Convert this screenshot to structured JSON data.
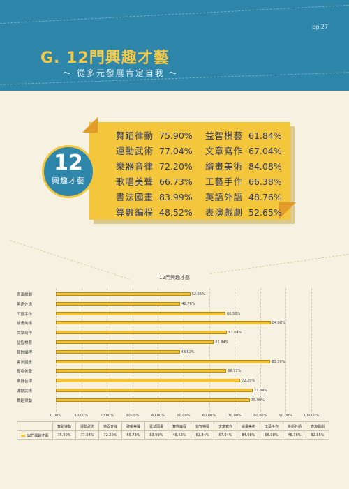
{
  "page_number": "pg 27",
  "title": "G. 12門興趣才藝",
  "subtitle": "～ 從多元發展肯定自我 ～",
  "badge": {
    "number": "12",
    "label": "興趣才藝"
  },
  "card_items": [
    {
      "name": "舞蹈律動",
      "pct": "75.90%"
    },
    {
      "name": "益智棋藝",
      "pct": "61.84%"
    },
    {
      "name": "運動武術",
      "pct": "77.04%"
    },
    {
      "name": "文章寫作",
      "pct": "67.04%"
    },
    {
      "name": "樂器音律",
      "pct": "72.20%"
    },
    {
      "name": "繪畫美術",
      "pct": "84.08%"
    },
    {
      "name": "歌唱美聲",
      "pct": "66.73%"
    },
    {
      "name": "工藝手作",
      "pct": "66.38%"
    },
    {
      "name": "書法國畫",
      "pct": "83.99%"
    },
    {
      "name": "英語外語",
      "pct": "48.76%"
    },
    {
      "name": "算數編程",
      "pct": "48.52%"
    },
    {
      "name": "表演戲劇",
      "pct": "52.65%"
    }
  ],
  "chart_data": {
    "type": "bar",
    "orientation": "horizontal",
    "title": "12門興趣才藝",
    "categories": [
      "表演戲劇",
      "英語外語",
      "工藝手作",
      "繪畫美術",
      "文章寫作",
      "益智棋藝",
      "算數編程",
      "書法國畫",
      "歌唱美聲",
      "樂器音律",
      "運動武術",
      "舞蹈律動"
    ],
    "values": [
      52.65,
      48.76,
      66.38,
      84.08,
      67.04,
      61.84,
      48.52,
      83.99,
      66.73,
      72.2,
      77.04,
      75.9
    ],
    "value_labels": [
      "52.65%",
      "48.76%",
      "66.38%",
      "84.08%",
      "67.04%",
      "61.84%",
      "48.52%",
      "83.99%",
      "66.73%",
      "72.20%",
      "77.04%",
      "75.90%"
    ],
    "xlim": [
      0,
      100
    ],
    "xticks": [
      "0.00%",
      "10.00%",
      "20.00%",
      "30.00%",
      "40.00%",
      "50.00%",
      "60.00%",
      "70.00%",
      "80.00%",
      "90.00%",
      "100.00%"
    ],
    "grid": true,
    "series_color": "#f1c232",
    "table": {
      "series_name": "12門興趣才藝",
      "columns": [
        "舞蹈律動",
        "運動武術",
        "樂器音律",
        "歌唱美聲",
        "書法國畫",
        "算數編程",
        "益智棋藝",
        "文章寫作",
        "繪畫美術",
        "工藝手作",
        "英語外語",
        "表演戲劇"
      ],
      "values": [
        "75.90%",
        "77.04%",
        "72.20%",
        "66.73%",
        "83.99%",
        "48.52%",
        "61.84%",
        "67.04%",
        "84.08%",
        "66.38%",
        "48.76%",
        "52.65%"
      ]
    }
  }
}
